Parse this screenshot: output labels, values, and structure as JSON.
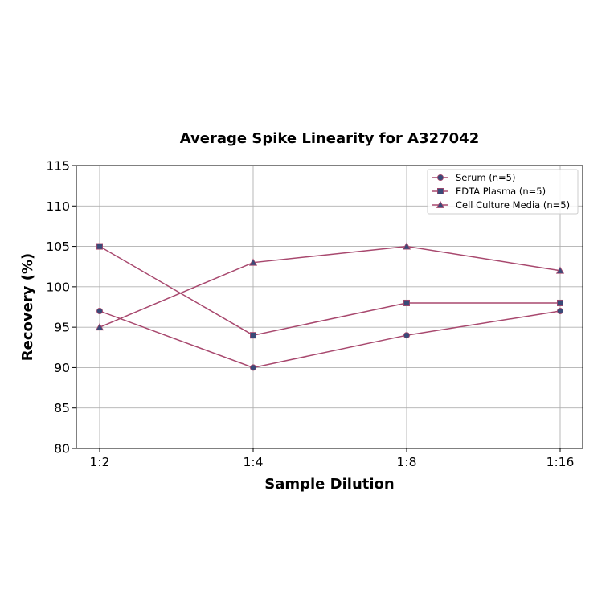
{
  "chart_data": {
    "type": "line",
    "title": "Average Spike Linearity for A327042",
    "xlabel": "Sample Dilution",
    "ylabel": "Recovery (%)",
    "categories": [
      "1:2",
      "1:4",
      "1:8",
      "1:16"
    ],
    "ylim": [
      80,
      115
    ],
    "yticks": [
      80,
      85,
      90,
      95,
      100,
      105,
      110,
      115
    ],
    "grid": true,
    "legend_position": "top-right",
    "series": [
      {
        "name": "Serum (n=5)",
        "marker": "circle",
        "values": [
          97,
          90,
          94,
          97
        ]
      },
      {
        "name": "EDTA Plasma (n=5)",
        "marker": "square",
        "values": [
          105,
          94,
          98,
          98
        ]
      },
      {
        "name": "Cell Culture Media (n=5)",
        "marker": "triangle",
        "values": [
          95,
          103,
          105,
          102
        ]
      }
    ],
    "colors": {
      "line": "#a8486e",
      "marker_fill": "#3a4a78"
    }
  }
}
